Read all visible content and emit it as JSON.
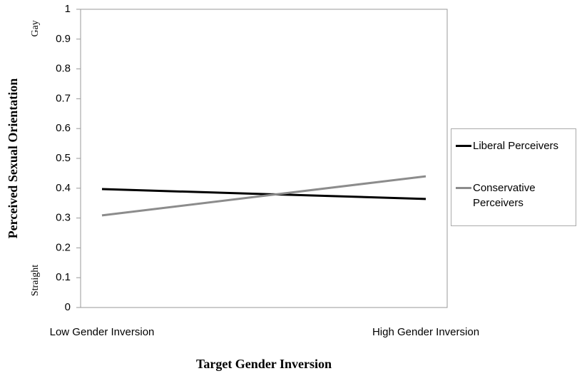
{
  "chart_data": {
    "type": "line",
    "y_label": "Perceived Sexual Orientation",
    "x_label": "Target Gender Inversion",
    "annotations": [
      "Gay",
      "Straight"
    ],
    "categories": [
      "Low Gender Inversion",
      "High Gender Inversion"
    ],
    "series": [
      {
        "name": "Liberal Perceivers",
        "color": "#000000",
        "values": [
          0.397,
          0.364
        ]
      },
      {
        "name": "Conservative Perceivers",
        "color": "#8c8c8c",
        "values": [
          0.309,
          0.44
        ]
      }
    ],
    "ylim": [
      0,
      1
    ],
    "yticks": [
      0,
      0.1,
      0.2,
      0.3,
      0.4,
      0.5,
      0.6,
      0.7,
      0.8,
      0.9,
      1
    ],
    "grid": false,
    "legend": "right"
  }
}
